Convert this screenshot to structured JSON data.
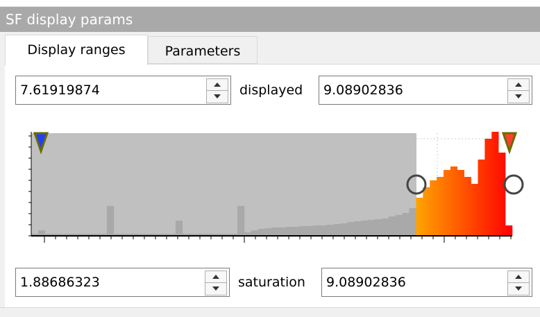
{
  "panel": {
    "title": "SF display params"
  },
  "tabs": [
    "Display ranges",
    "Parameters"
  ],
  "display": {
    "min": "7.61919874",
    "label": "displayed",
    "max": "9.08902836"
  },
  "histogram": {
    "values": [
      3,
      8,
      3,
      3,
      3,
      3,
      3,
      3,
      3,
      3,
      3,
      43,
      3,
      3,
      3,
      3,
      3,
      3,
      3,
      3,
      3,
      22,
      3,
      3,
      3,
      3,
      3,
      3,
      3,
      3,
      43,
      5,
      8,
      10,
      11,
      12,
      12,
      13,
      13,
      14,
      14,
      15,
      15,
      16,
      17,
      18,
      20,
      21,
      22,
      23,
      24,
      25,
      28,
      30,
      33,
      40,
      55,
      70,
      80,
      85,
      95,
      100,
      95,
      85,
      75,
      110,
      140,
      150,
      120,
      15
    ]
  },
  "saturation": {
    "min": "1.88686323",
    "label": "saturation",
    "max": "9.08902836"
  }
}
